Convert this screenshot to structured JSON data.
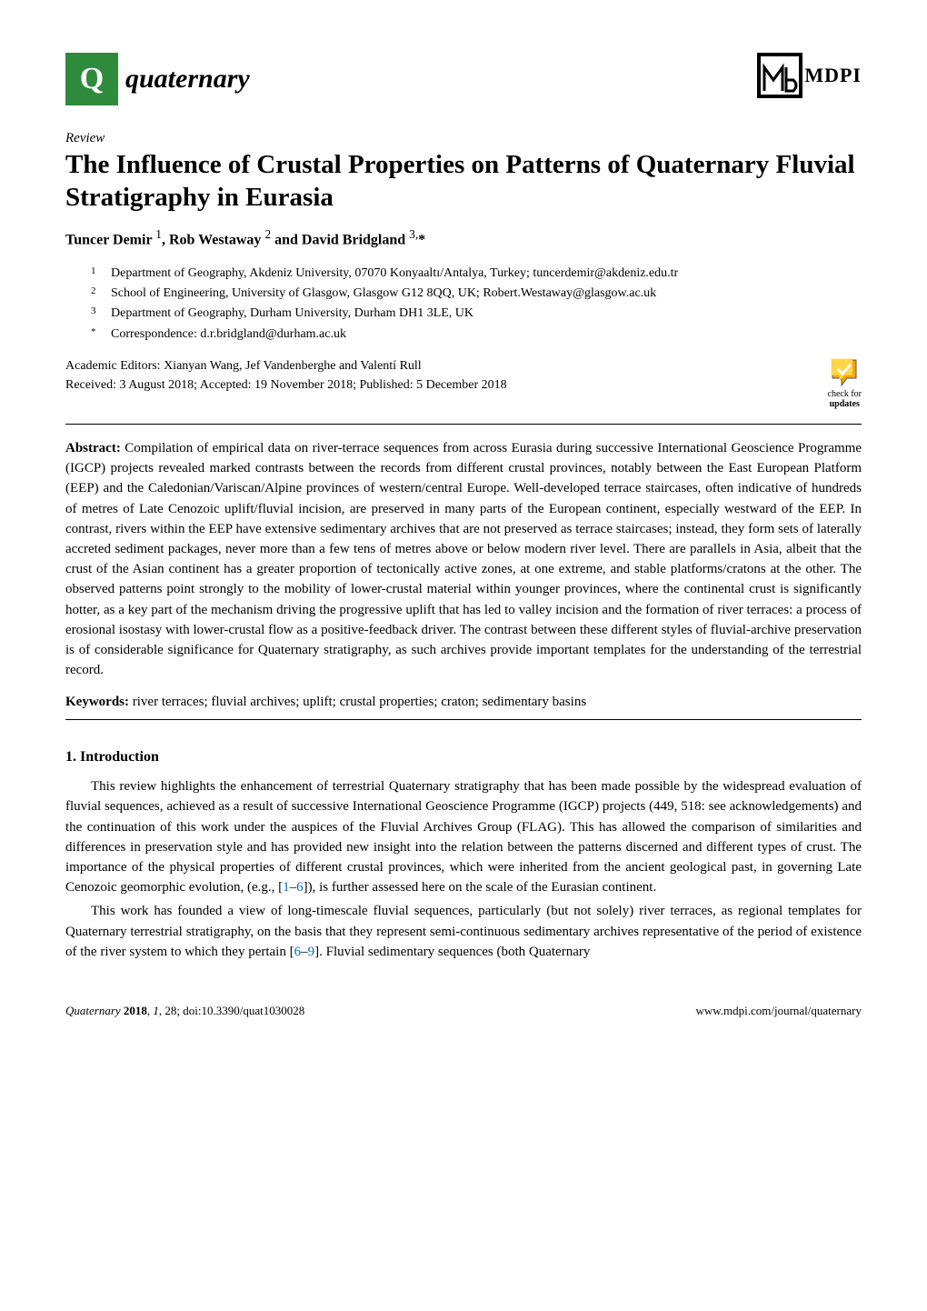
{
  "header": {
    "logo_letter": "Q",
    "journal_name": "quaternary",
    "publisher": "MDPI"
  },
  "article": {
    "type": "Review",
    "title": "The Influence of Crustal Properties on Patterns of Quaternary Fluvial Stratigraphy in Eurasia",
    "authors_html": "Tuncer Demir <sup>1</sup>, Rob Westaway <sup>2</sup> and David Bridgland <sup>3,</sup>*"
  },
  "affiliations": [
    {
      "num": "1",
      "text": "Department of Geography, Akdeniz University, 07070 Konyaaltı/Antalya, Turkey; tuncerdemir@akdeniz.edu.tr"
    },
    {
      "num": "2",
      "text": "School of Engineering, University of Glasgow, Glasgow G12 8QQ, UK; Robert.Westaway@glasgow.ac.uk"
    },
    {
      "num": "3",
      "text": "Department of Geography, Durham University, Durham DH1 3LE, UK"
    },
    {
      "num": "*",
      "text": "Correspondence: d.r.bridgland@durham.ac.uk"
    }
  ],
  "editor": {
    "editors_line": "Academic Editors: Xianyan Wang, Jef Vandenberghe and Valentí Rull",
    "dates_line": "Received: 3 August 2018; Accepted: 19 November 2018; Published: 5 December 2018"
  },
  "check_updates": {
    "line1": "check for",
    "line2": "updates"
  },
  "abstract": {
    "label": "Abstract:",
    "text": "Compilation of empirical data on river-terrace sequences from across Eurasia during successive International Geoscience Programme (IGCP) projects revealed marked contrasts between the records from different crustal provinces, notably between the East European Platform (EEP) and the Caledonian/Variscan/Alpine provinces of western/central Europe. Well-developed terrace staircases, often indicative of hundreds of metres of Late Cenozoic uplift/fluvial incision, are preserved in many parts of the European continent, especially westward of the EEP. In contrast, rivers within the EEP have extensive sedimentary archives that are not preserved as terrace staircases; instead, they form sets of laterally accreted sediment packages, never more than a few tens of metres above or below modern river level. There are parallels in Asia, albeit that the crust of the Asian continent has a greater proportion of tectonically active zones, at one extreme, and stable platforms/cratons at the other. The observed patterns point strongly to the mobility of lower-crustal material within younger provinces, where the continental crust is significantly hotter, as a key part of the mechanism driving the progressive uplift that has led to valley incision and the formation of river terraces: a process of erosional isostasy with lower-crustal flow as a positive-feedback driver. The contrast between these different styles of fluvial-archive preservation is of considerable significance for Quaternary stratigraphy, as such archives provide important templates for the understanding of the terrestrial record."
  },
  "keywords": {
    "label": "Keywords:",
    "text": "river terraces; fluvial archives; uplift; crustal properties; craton; sedimentary basins"
  },
  "section1": {
    "heading": "1. Introduction",
    "para1_a": "This review highlights the enhancement of terrestrial Quaternary stratigraphy that has been made possible by the widespread evaluation of fluvial sequences, achieved as a result of successive International Geoscience Programme (IGCP) projects (449, 518: see acknowledgements) and the continuation of this work under the auspices of the Fluvial Archives Group (FLAG). This has allowed the comparison of similarities and differences in preservation style and has provided new insight into the relation between the patterns discerned and different types of crust. The importance of the physical properties of different crustal provinces, which were inherited from the ancient geological past, in governing Late Cenozoic geomorphic evolution, (e.g., [",
    "ref1": "1",
    "dash1": "–",
    "ref2": "6",
    "para1_b": "]), is further assessed here on the scale of the Eurasian continent.",
    "para2_a": "This work has founded a view of long-timescale fluvial sequences, particularly (but not solely) river terraces, as regional templates for Quaternary terrestrial stratigraphy, on the basis that they represent semi-continuous sedimentary archives representative of the period of existence of the river system to which they pertain [",
    "ref3": "6",
    "dash2": "–",
    "ref4": "9",
    "para2_b": "]. Fluvial sedimentary sequences (both Quaternary"
  },
  "footer": {
    "left": "Quaternary 2018, 1, 28; doi:10.3390/quat1030028",
    "right": "www.mdpi.com/journal/quaternary"
  },
  "colors": {
    "logo_bg": "#2e8b3b",
    "link": "#0066cc",
    "check_orange": "#f7a600",
    "check_yellow": "#ffd54a"
  }
}
